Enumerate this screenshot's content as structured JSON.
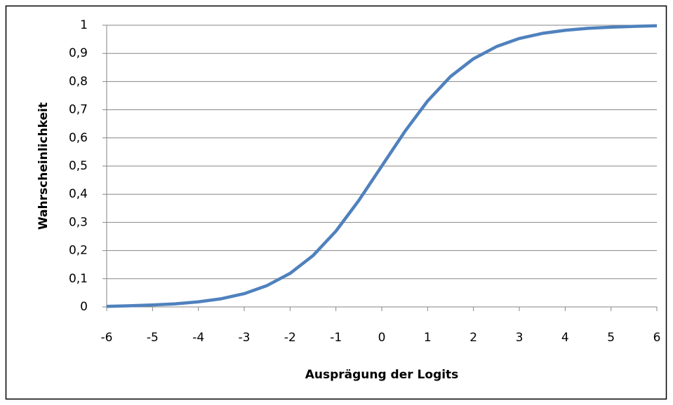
{
  "chart_data": {
    "type": "line",
    "x_label": "Ausprägung der Logits",
    "y_label": "Wahrscheinlichkeit",
    "x": [
      -6,
      -5.5,
      -5,
      -4.5,
      -4,
      -3.5,
      -3,
      -2.5,
      -2,
      -1.5,
      -1,
      -0.5,
      0,
      0.5,
      1,
      1.5,
      2,
      2.5,
      3,
      3.5,
      4,
      4.5,
      5,
      5.5,
      6
    ],
    "series": [
      {
        "color": "#4f81bd",
        "values": [
          0.002,
          0.004,
          0.007,
          0.011,
          0.018,
          0.029,
          0.047,
          0.076,
          0.119,
          0.182,
          0.269,
          0.378,
          0.5,
          0.622,
          0.731,
          0.818,
          0.881,
          0.924,
          0.953,
          0.971,
          0.982,
          0.989,
          0.993,
          0.996,
          0.998
        ]
      }
    ],
    "xlim": [
      -6,
      6
    ],
    "xticks": [
      -6,
      -5,
      -4,
      -3,
      -2,
      -1,
      0,
      1,
      2,
      3,
      4,
      5,
      6
    ],
    "ylim": [
      0,
      1
    ],
    "yticks": [
      0,
      {
        "value": 0.1,
        "label": "0,1"
      },
      {
        "value": 0.2,
        "label": "0,2"
      },
      {
        "value": 0.3,
        "label": "0,3"
      },
      {
        "value": 0.4,
        "label": "0,4"
      },
      {
        "value": 0.5,
        "label": "0,5"
      },
      {
        "value": 0.6,
        "label": "0,6"
      },
      {
        "value": 0.7,
        "label": "0,7"
      },
      {
        "value": 0.8,
        "label": "0,8"
      },
      {
        "value": 0.9,
        "label": "0,9"
      },
      1
    ],
    "grid": true
  }
}
